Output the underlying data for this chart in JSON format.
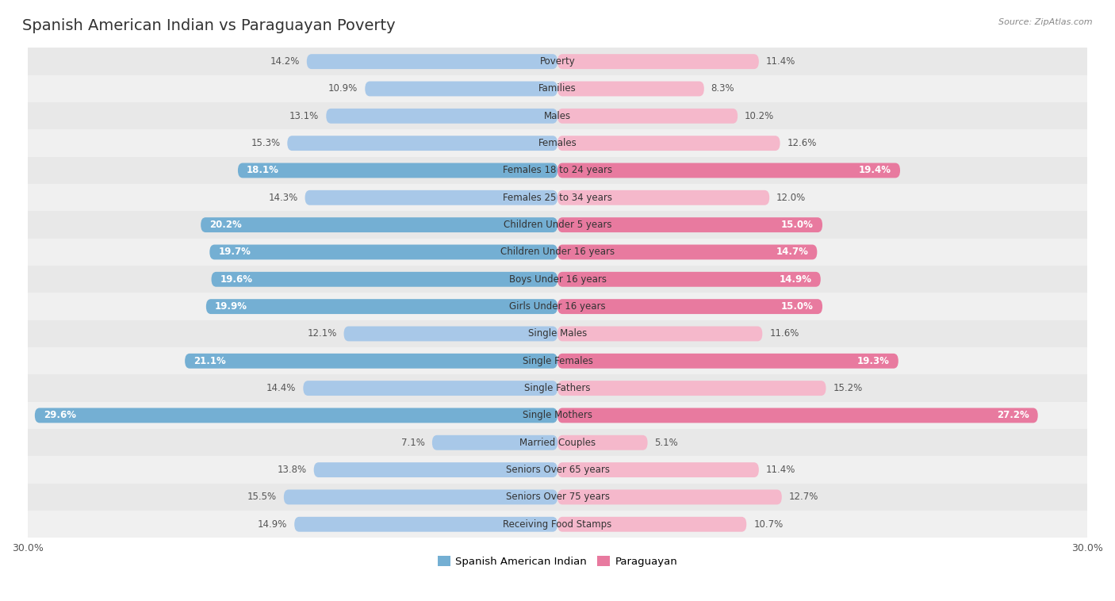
{
  "title": "Spanish American Indian vs Paraguayan Poverty",
  "source": "Source: ZipAtlas.com",
  "categories": [
    "Poverty",
    "Families",
    "Males",
    "Females",
    "Females 18 to 24 years",
    "Females 25 to 34 years",
    "Children Under 5 years",
    "Children Under 16 years",
    "Boys Under 16 years",
    "Girls Under 16 years",
    "Single Males",
    "Single Females",
    "Single Fathers",
    "Single Mothers",
    "Married Couples",
    "Seniors Over 65 years",
    "Seniors Over 75 years",
    "Receiving Food Stamps"
  ],
  "left_values": [
    14.2,
    10.9,
    13.1,
    15.3,
    18.1,
    14.3,
    20.2,
    19.7,
    19.6,
    19.9,
    12.1,
    21.1,
    14.4,
    29.6,
    7.1,
    13.8,
    15.5,
    14.9
  ],
  "right_values": [
    11.4,
    8.3,
    10.2,
    12.6,
    19.4,
    12.0,
    15.0,
    14.7,
    14.9,
    15.0,
    11.6,
    19.3,
    15.2,
    27.2,
    5.1,
    11.4,
    12.7,
    10.7
  ],
  "left_label": "Spanish American Indian",
  "right_label": "Paraguayan",
  "left_color_normal": "#a8c8e8",
  "left_color_highlight": "#74afd3",
  "right_color_normal": "#f5b8cb",
  "right_color_highlight": "#e87a9f",
  "highlight_rows": [
    4,
    6,
    7,
    8,
    9,
    11,
    13
  ],
  "axis_limit": 30.0,
  "bar_height": 0.55,
  "background_color": "#ffffff",
  "row_alt_color": "#e8e8e8",
  "row_base_color": "#f0f0f0",
  "title_fontsize": 14,
  "label_fontsize": 8.5,
  "value_fontsize": 8.5
}
